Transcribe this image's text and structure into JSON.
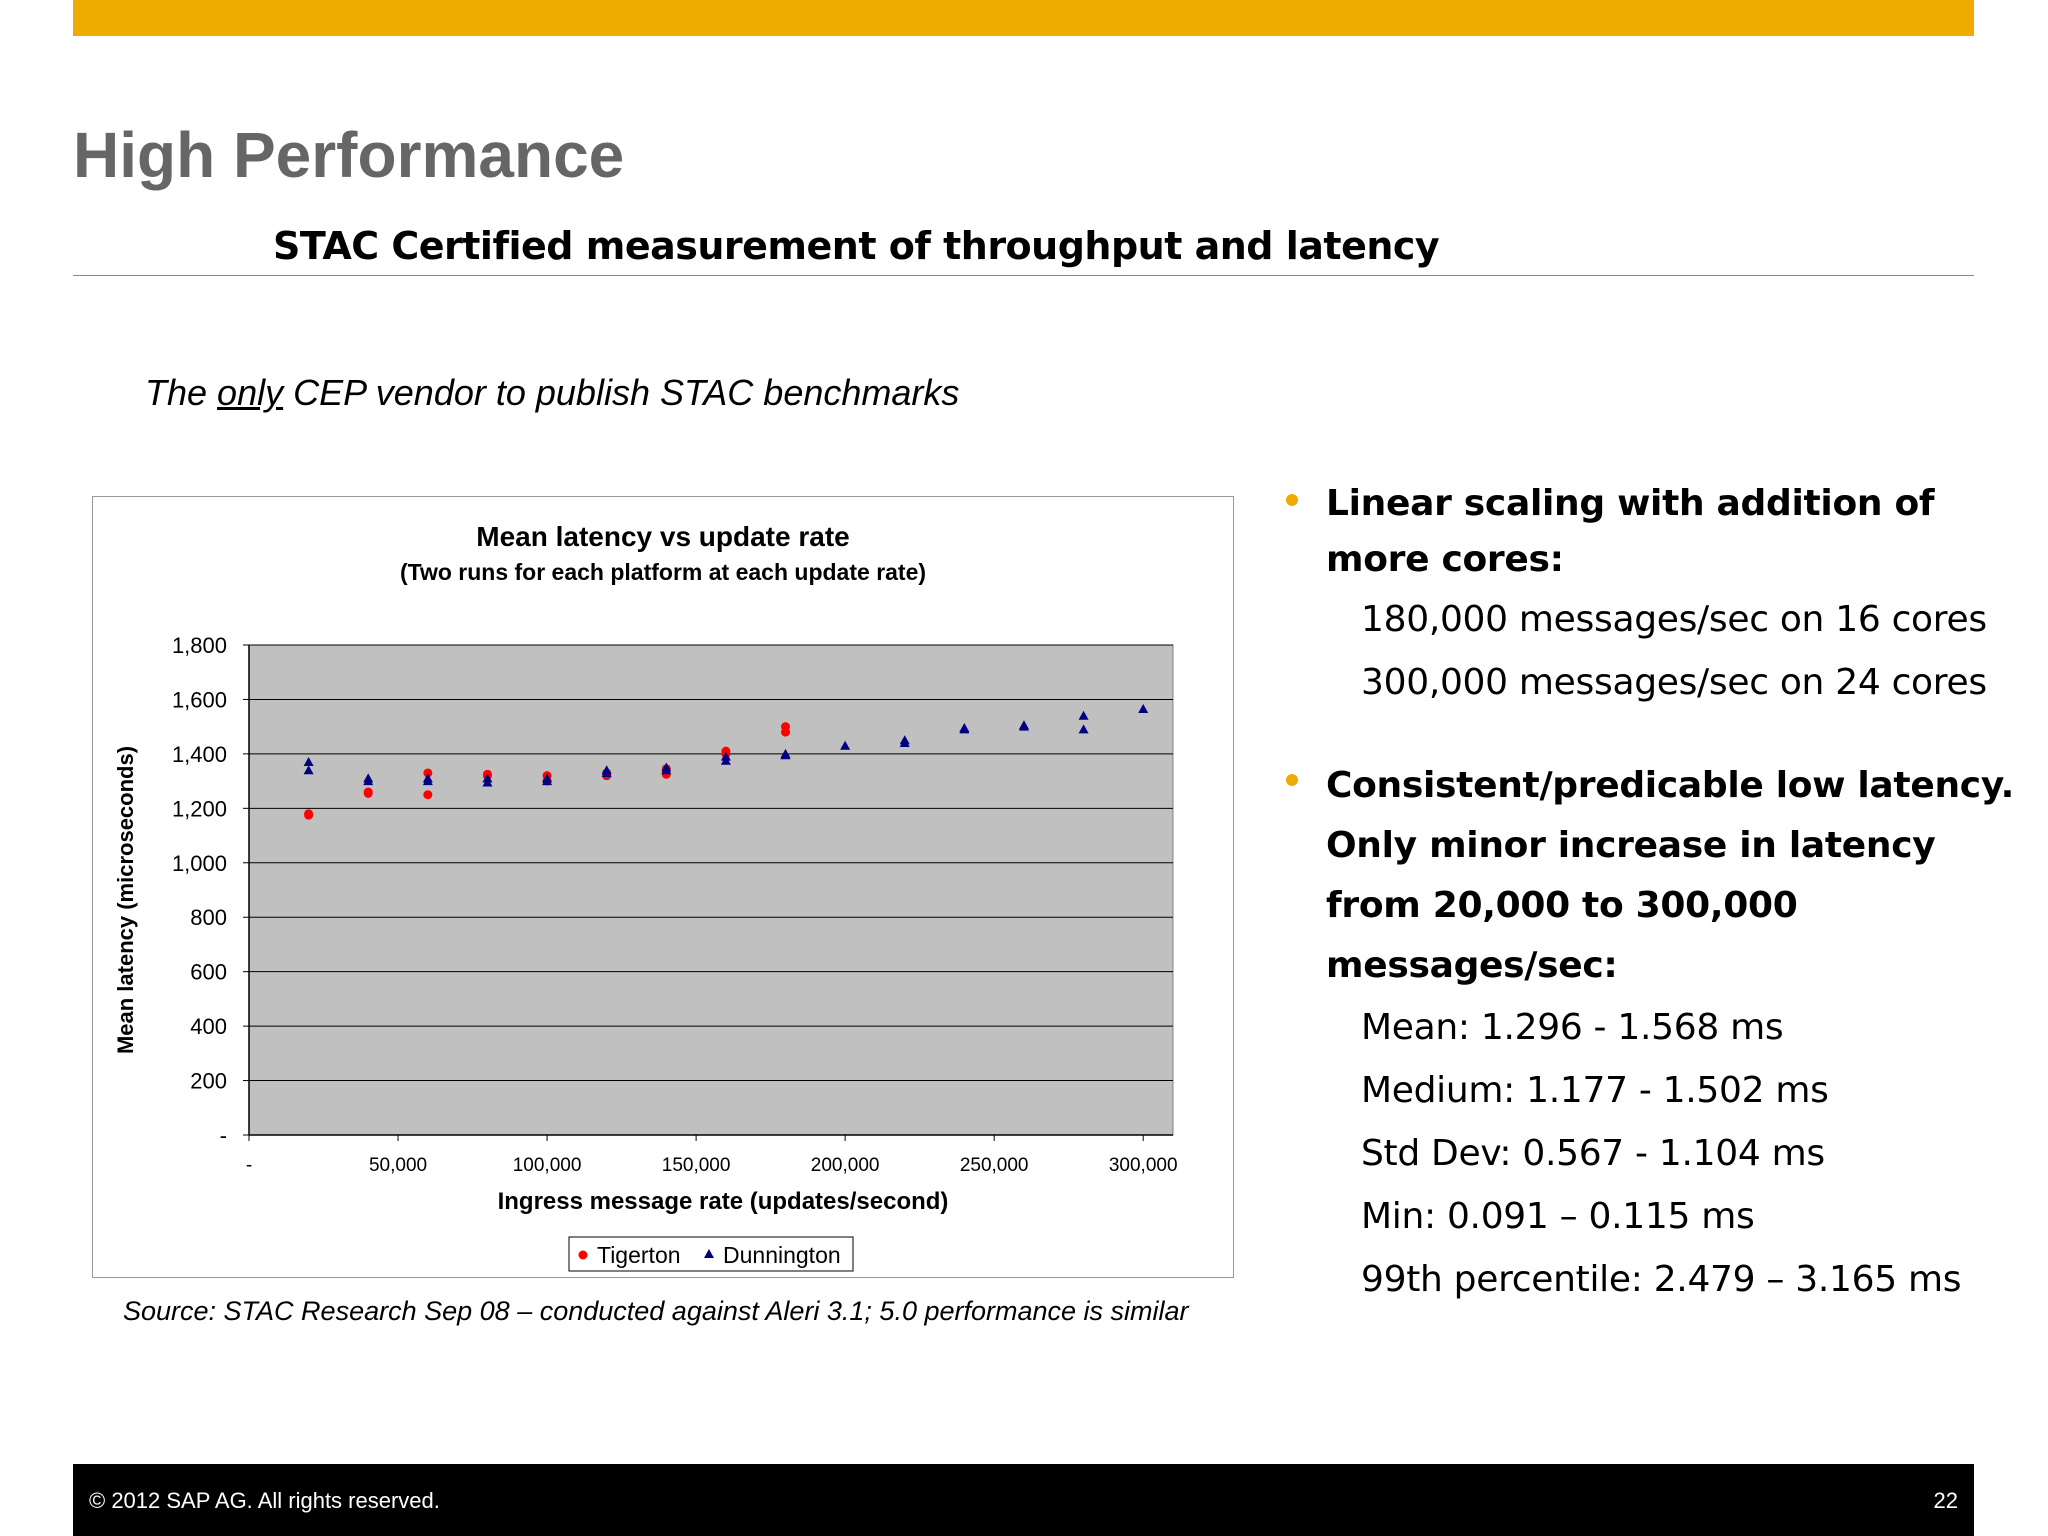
{
  "slide": {
    "title": "High Performance",
    "subtitle": "STAC Certified measurement of throughput and latency",
    "tagline_pre": "The ",
    "tagline_emph": "only",
    "tagline_post": " CEP vendor to publish STAC benchmarks",
    "source_note": "Source: STAC Research Sep 08 – conducted against Aleri 3.1;  5.0 performance is similar"
  },
  "bullets": [
    {
      "heading": "Linear scaling with addition of more cores:",
      "lines": [
        "180,000 messages/sec on 16 cores",
        "300,000 messages/sec on 24 cores"
      ]
    },
    {
      "heading": "Consistent/predicable low latency. Only minor increase in latency from 20,000 to 300,000 messages/sec:",
      "lines": [
        "Mean: 1.296 - 1.568 ms",
        "Medium: 1.177 - 1.502 ms",
        "Std Dev: 0.567 - 1.104 ms",
        "Min: 0.091 – 0.115 ms",
        "99th percentile: 2.479 – 3.165 ms"
      ]
    }
  ],
  "footer": {
    "copyright": "©  2012 SAP AG. All rights reserved.",
    "page_number": "22"
  },
  "colors": {
    "accent": "#f0ab00",
    "plot_bg": "#c0c0c0",
    "tigerton": "#ff0000",
    "dunnington": "#000080"
  },
  "chart_data": {
    "type": "scatter",
    "title": "Mean latency vs update rate",
    "subtitle": "(Two runs for each platform at each update rate)",
    "xlabel": "Ingress message rate (updates/second)",
    "ylabel": "Mean latency (microseconds)",
    "xlim": [
      0,
      310000
    ],
    "ylim": [
      0,
      1800
    ],
    "x_ticks": [
      0,
      50000,
      100000,
      150000,
      200000,
      250000,
      300000
    ],
    "x_tick_labels": [
      "-",
      "50,000",
      "100,000",
      "150,000",
      "200,000",
      "250,000",
      "300,000"
    ],
    "y_ticks": [
      0,
      200,
      400,
      600,
      800,
      1000,
      1200,
      1400,
      1600,
      1800
    ],
    "y_tick_labels": [
      "-",
      "200",
      "400",
      "600",
      "800",
      "1,000",
      "1,200",
      "1,400",
      "1,600",
      "1,800"
    ],
    "grid": true,
    "legend_position": "bottom",
    "series": [
      {
        "name": "Tigerton",
        "marker": "circle",
        "points": [
          [
            20000,
            1175
          ],
          [
            20000,
            1180
          ],
          [
            40000,
            1255
          ],
          [
            40000,
            1260
          ],
          [
            60000,
            1250
          ],
          [
            60000,
            1330
          ],
          [
            80000,
            1320
          ],
          [
            80000,
            1325
          ],
          [
            100000,
            1300
          ],
          [
            100000,
            1320
          ],
          [
            120000,
            1320
          ],
          [
            120000,
            1330
          ],
          [
            140000,
            1325
          ],
          [
            140000,
            1345
          ],
          [
            160000,
            1400
          ],
          [
            160000,
            1410
          ],
          [
            180000,
            1480
          ],
          [
            180000,
            1500
          ]
        ]
      },
      {
        "name": "Dunnington",
        "marker": "triangle",
        "points": [
          [
            20000,
            1340
          ],
          [
            20000,
            1370
          ],
          [
            40000,
            1300
          ],
          [
            40000,
            1310
          ],
          [
            60000,
            1300
          ],
          [
            60000,
            1310
          ],
          [
            80000,
            1295
          ],
          [
            80000,
            1310
          ],
          [
            100000,
            1300
          ],
          [
            100000,
            1310
          ],
          [
            120000,
            1330
          ],
          [
            120000,
            1340
          ],
          [
            140000,
            1340
          ],
          [
            140000,
            1350
          ],
          [
            160000,
            1375
          ],
          [
            160000,
            1390
          ],
          [
            180000,
            1395
          ],
          [
            180000,
            1400
          ],
          [
            200000,
            1430
          ],
          [
            220000,
            1440
          ],
          [
            220000,
            1450
          ],
          [
            240000,
            1490
          ],
          [
            240000,
            1495
          ],
          [
            260000,
            1500
          ],
          [
            260000,
            1505
          ],
          [
            280000,
            1490
          ],
          [
            280000,
            1540
          ],
          [
            300000,
            1565
          ]
        ]
      }
    ]
  }
}
